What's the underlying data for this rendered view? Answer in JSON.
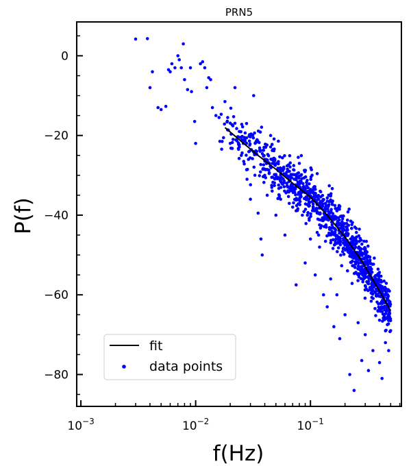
{
  "chart_data": {
    "type": "scatter",
    "title": "PRN5",
    "xlabel": "f(Hz)",
    "ylabel": "P(f)",
    "xscale": "log",
    "xlim": [
      0.00092,
      0.62
    ],
    "ylim": [
      -88,
      8.5
    ],
    "xticks": [
      {
        "value": 0.001,
        "base": "10",
        "exp": "−3"
      },
      {
        "value": 0.01,
        "base": "10",
        "exp": "−2"
      },
      {
        "value": 0.1,
        "base": "10",
        "exp": "−1"
      }
    ],
    "yticks": [
      {
        "value": 0,
        "label": "0"
      },
      {
        "value": -20,
        "label": "−20"
      },
      {
        "value": -40,
        "label": "−40"
      },
      {
        "value": -60,
        "label": "−60"
      },
      {
        "value": -80,
        "label": "−80"
      }
    ],
    "legend_placement": "lower-left",
    "series": [
      {
        "name": "fit",
        "kind": "line",
        "color": "#000000",
        "x": [
          0.018,
          0.025,
          0.035,
          0.05,
          0.07,
          0.1,
          0.14,
          0.2,
          0.28,
          0.38,
          0.5
        ],
        "y": [
          -18,
          -21.5,
          -25,
          -28.5,
          -32,
          -35.5,
          -40,
          -45.5,
          -51.5,
          -58,
          -64
        ]
      },
      {
        "name": "data points",
        "kind": "scatter",
        "color": "#0000ff",
        "points": [
          [
            0.003,
            4.2
          ],
          [
            0.0038,
            4.3
          ],
          [
            0.004,
            -8
          ],
          [
            0.0042,
            -4
          ],
          [
            0.0047,
            -13
          ],
          [
            0.005,
            -13.5
          ],
          [
            0.0055,
            -12.7
          ],
          [
            0.0058,
            -3.5
          ],
          [
            0.006,
            -4
          ],
          [
            0.0062,
            -2
          ],
          [
            0.0066,
            -3
          ],
          [
            0.007,
            0
          ],
          [
            0.0072,
            -1
          ],
          [
            0.0075,
            -3
          ],
          [
            0.0078,
            3
          ],
          [
            0.008,
            -6
          ],
          [
            0.0085,
            -8.5
          ],
          [
            0.009,
            -3
          ],
          [
            0.0092,
            -9
          ],
          [
            0.0098,
            -16.5
          ],
          [
            0.01,
            -22
          ],
          [
            0.011,
            -2
          ],
          [
            0.0115,
            -1.5
          ],
          [
            0.012,
            -3
          ],
          [
            0.0125,
            -8
          ],
          [
            0.013,
            -5.5
          ],
          [
            0.0135,
            -6
          ],
          [
            0.014,
            -13
          ],
          [
            0.015,
            -15
          ],
          [
            0.016,
            -15.5
          ],
          [
            0.017,
            -21.5
          ],
          [
            0.018,
            -11.5
          ],
          [
            0.019,
            -15.5
          ],
          [
            0.02,
            -22
          ],
          [
            0.022,
            -8
          ],
          [
            0.024,
            -19
          ],
          [
            0.025,
            -25
          ],
          [
            0.026,
            -22
          ],
          [
            0.028,
            -31
          ],
          [
            0.03,
            -36
          ],
          [
            0.032,
            -10
          ],
          [
            0.034,
            -24
          ],
          [
            0.035,
            -39.5
          ],
          [
            0.037,
            -46
          ],
          [
            0.038,
            -50
          ],
          [
            0.04,
            -30
          ],
          [
            0.042,
            -35
          ],
          [
            0.045,
            -20
          ],
          [
            0.048,
            -27
          ],
          [
            0.05,
            -40
          ],
          [
            0.055,
            -36
          ],
          [
            0.06,
            -45
          ],
          [
            0.065,
            -29
          ],
          [
            0.07,
            -38
          ],
          [
            0.075,
            -57.5
          ],
          [
            0.08,
            -27
          ],
          [
            0.085,
            -40
          ],
          [
            0.09,
            -52
          ],
          [
            0.1,
            -46
          ],
          [
            0.11,
            -55
          ],
          [
            0.12,
            -48
          ],
          [
            0.13,
            -60
          ],
          [
            0.14,
            -63
          ],
          [
            0.15,
            -56
          ],
          [
            0.16,
            -68
          ],
          [
            0.17,
            -60
          ],
          [
            0.18,
            -71
          ],
          [
            0.2,
            -65
          ],
          [
            0.22,
            -80
          ],
          [
            0.24,
            -84
          ],
          [
            0.26,
            -67
          ],
          [
            0.28,
            -76.5
          ],
          [
            0.3,
            -70
          ],
          [
            0.32,
            -79
          ],
          [
            0.35,
            -74
          ],
          [
            0.4,
            -77
          ],
          [
            0.42,
            -81
          ],
          [
            0.45,
            -72
          ],
          [
            0.48,
            -74
          ],
          [
            0.5,
            -69
          ]
        ],
        "generated_count": 1080,
        "seed": 12345
      }
    ]
  }
}
